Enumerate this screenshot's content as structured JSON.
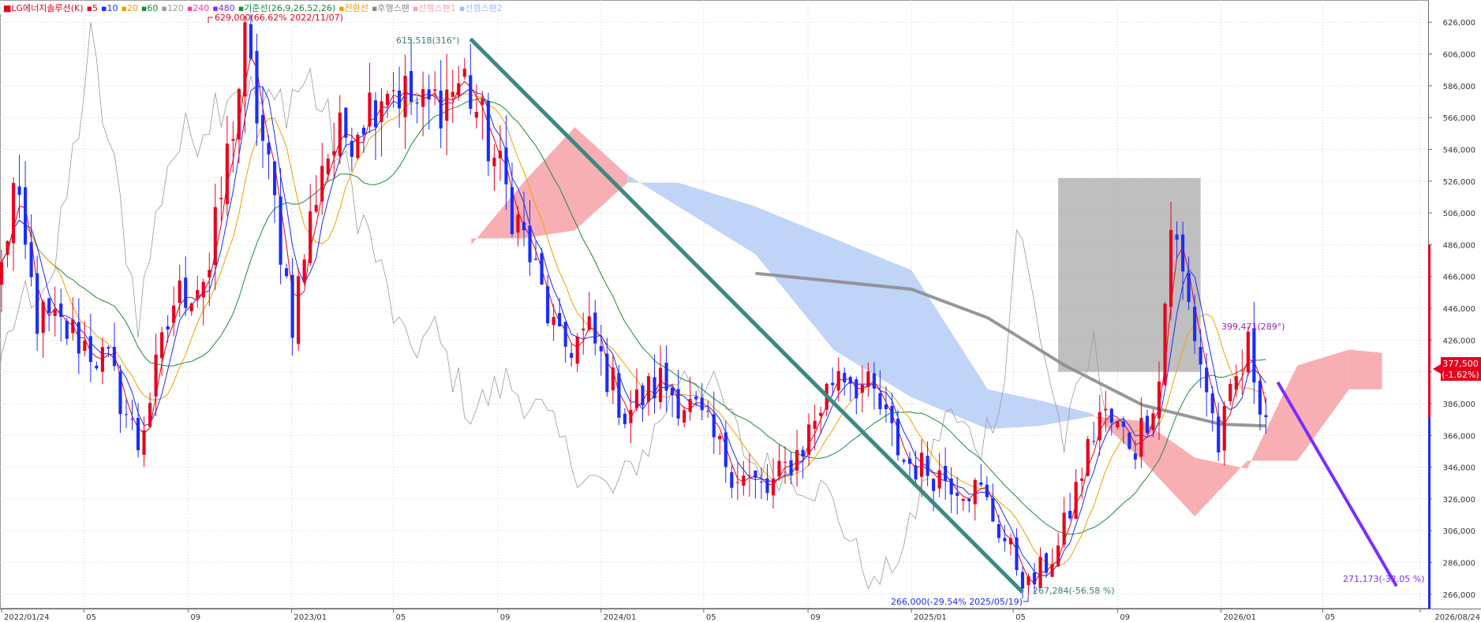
{
  "legend": [
    {
      "label": "LG에너지솔루션(K)",
      "color": "#e8001c"
    },
    {
      "label": "5",
      "color": "#e8001c"
    },
    {
      "label": "10",
      "color": "#1a2cff"
    },
    {
      "label": "20",
      "color": "#f0a000"
    },
    {
      "label": "60",
      "color": "#1a8a3a"
    },
    {
      "label": "120",
      "color": "#9a9a9a"
    },
    {
      "label": "240",
      "color": "#ff3aa0"
    },
    {
      "label": "480",
      "color": "#7a2cff"
    },
    {
      "label": "기준선(26,9,26,52,26)",
      "color": "#1a8a3a"
    },
    {
      "label": "전환선",
      "color": "#f0a000"
    },
    {
      "label": "후행스팬",
      "color": "#8a8a8a"
    },
    {
      "label": "선행스팬1",
      "color": "#ff9fb0"
    },
    {
      "label": "선행스팬2",
      "color": "#9fbcff"
    }
  ],
  "annotations": {
    "high": "629,000(66.62% 2022/11/07)",
    "trend_start": "615,518(316°)",
    "trend_end": "267,284(-56.58 %)",
    "low": "266,000(-29.54% 2025/05/19)",
    "proj_start": "399,471(289°)",
    "proj_end": "271,173(-32.05 %)"
  },
  "price_box": {
    "value": "377,500",
    "change": "(-1.62%)"
  },
  "chart_data": {
    "type": "candlestick",
    "ylim": [
      258000,
      638000
    ],
    "y_ticks": [
      626000,
      606000,
      586000,
      566000,
      546000,
      526000,
      506000,
      486000,
      466000,
      446000,
      426000,
      406000,
      386000,
      366000,
      346000,
      326000,
      306000,
      286000,
      266000
    ],
    "y_tick_labels": [
      "626,000",
      "606,000",
      "586,000",
      "566,000",
      "546,000",
      "526,000",
      "506,000",
      "486,000",
      "466,000",
      "446,000",
      "426,000",
      "406,000",
      "386,000",
      "366,000",
      "346,000",
      "326,000",
      "306,000",
      "286,000",
      "266,000"
    ],
    "x_range": [
      "2022-01-24",
      "2026-08-24"
    ],
    "x_ticks": [
      {
        "date": "2022-01-24",
        "label": "2022/01/24"
      },
      {
        "date": "2022-05-01",
        "label": "05"
      },
      {
        "date": "2022-09-01",
        "label": "09"
      },
      {
        "date": "2023-01-01",
        "label": "2023/01"
      },
      {
        "date": "2023-05-01",
        "label": "05"
      },
      {
        "date": "2023-09-01",
        "label": "09"
      },
      {
        "date": "2024-01-01",
        "label": "2024/01"
      },
      {
        "date": "2024-05-01",
        "label": "05"
      },
      {
        "date": "2024-09-01",
        "label": "09"
      },
      {
        "date": "2025-01-01",
        "label": "2025/01"
      },
      {
        "date": "2025-05-01",
        "label": "05"
      },
      {
        "date": "2025-09-01",
        "label": "09"
      },
      {
        "date": "2026-01-01",
        "label": "2026/01"
      },
      {
        "date": "2026-05-01",
        "label": "05"
      },
      {
        "date": "2026-08-24",
        "label": "2026/08/24"
      }
    ],
    "anchors": [
      {
        "date": "2022-01-24",
        "price": 470000
      },
      {
        "date": "2022-02-07",
        "price": 520000
      },
      {
        "date": "2022-03-07",
        "price": 440000
      },
      {
        "date": "2022-04-18",
        "price": 430000
      },
      {
        "date": "2022-05-30",
        "price": 410000
      },
      {
        "date": "2022-07-04",
        "price": 360000
      },
      {
        "date": "2022-08-15",
        "price": 450000
      },
      {
        "date": "2022-09-26",
        "price": 470000
      },
      {
        "date": "2022-11-07",
        "price": 610000
      },
      {
        "date": "2022-12-12",
        "price": 510000
      },
      {
        "date": "2023-01-02",
        "price": 440000
      },
      {
        "date": "2023-02-06",
        "price": 540000
      },
      {
        "date": "2023-03-13",
        "price": 560000
      },
      {
        "date": "2023-04-24",
        "price": 590000
      },
      {
        "date": "2023-06-05",
        "price": 570000
      },
      {
        "date": "2023-07-24",
        "price": 590000
      },
      {
        "date": "2023-08-28",
        "price": 540000
      },
      {
        "date": "2023-10-02",
        "price": 490000
      },
      {
        "date": "2023-11-13",
        "price": 420000
      },
      {
        "date": "2023-12-18",
        "price": 430000
      },
      {
        "date": "2024-01-29",
        "price": 380000
      },
      {
        "date": "2024-03-11",
        "price": 400000
      },
      {
        "date": "2024-04-22",
        "price": 380000
      },
      {
        "date": "2024-06-03",
        "price": 345000
      },
      {
        "date": "2024-07-15",
        "price": 330000
      },
      {
        "date": "2024-08-26",
        "price": 360000
      },
      {
        "date": "2024-10-07",
        "price": 410000
      },
      {
        "date": "2024-11-18",
        "price": 390000
      },
      {
        "date": "2024-12-23",
        "price": 350000
      },
      {
        "date": "2025-02-10",
        "price": 340000
      },
      {
        "date": "2025-03-24",
        "price": 330000
      },
      {
        "date": "2025-05-19",
        "price": 270000
      },
      {
        "date": "2025-06-23",
        "price": 295000
      },
      {
        "date": "2025-08-11",
        "price": 380000
      },
      {
        "date": "2025-09-22",
        "price": 360000
      },
      {
        "date": "2025-10-20",
        "price": 400000
      },
      {
        "date": "2025-11-03",
        "price": 500000
      },
      {
        "date": "2025-12-01",
        "price": 430000
      },
      {
        "date": "2025-12-29",
        "price": 360000
      },
      {
        "date": "2026-01-19",
        "price": 400000
      },
      {
        "date": "2026-02-02",
        "price": 420000
      },
      {
        "date": "2026-02-23",
        "price": 377500
      }
    ],
    "ichimoku_cloud": [
      {
        "date": "2023-08-01",
        "span1": 486000,
        "span2": 490000
      },
      {
        "date": "2023-10-01",
        "span1": 525000,
        "span2": 490000
      },
      {
        "date": "2023-12-01",
        "span1": 560000,
        "span2": 495000
      },
      {
        "date": "2024-02-01",
        "span1": 530000,
        "span2": 525000
      },
      {
        "date": "2024-04-01",
        "span1": 510000,
        "span2": 525000
      },
      {
        "date": "2024-07-01",
        "span1": 480000,
        "span2": 510000
      },
      {
        "date": "2024-10-01",
        "span1": 420000,
        "span2": 490000
      },
      {
        "date": "2025-01-01",
        "span1": 390000,
        "span2": 470000
      },
      {
        "date": "2025-04-01",
        "span1": 370000,
        "span2": 395000
      },
      {
        "date": "2025-06-01",
        "span1": 372000,
        "span2": 388000
      },
      {
        "date": "2025-08-01",
        "span1": 378000,
        "span2": 380000
      },
      {
        "date": "2025-10-01",
        "span1": 375000,
        "span2": 350000
      },
      {
        "date": "2025-12-01",
        "span1": 352000,
        "span2": 315000
      },
      {
        "date": "2026-02-01",
        "span1": 345000,
        "span2": 350000
      },
      {
        "date": "2026-04-01",
        "span1": 410000,
        "span2": 350000
      },
      {
        "date": "2026-06-01",
        "span1": 420000,
        "span2": 395000
      },
      {
        "date": "2026-07-10",
        "span1": 418000,
        "span2": 395000
      }
    ],
    "ma240": [
      {
        "date": "2024-07-01",
        "price": 468000
      },
      {
        "date": "2024-10-01",
        "price": 463000
      },
      {
        "date": "2025-01-01",
        "price": 458000
      },
      {
        "date": "2025-04-01",
        "price": 440000
      },
      {
        "date": "2025-07-01",
        "price": 410000
      },
      {
        "date": "2025-10-01",
        "price": 385000
      },
      {
        "date": "2026-01-01",
        "price": 373000
      },
      {
        "date": "2026-02-23",
        "price": 372000
      }
    ],
    "trend_line": [
      {
        "date": "2023-07-31",
        "price": 615518
      },
      {
        "date": "2025-05-12",
        "price": 267284
      }
    ],
    "projection_line": [
      {
        "date": "2026-03-09",
        "price": 399471
      },
      {
        "date": "2026-07-27",
        "price": 271173
      }
    ],
    "box_zone": {
      "from": "2025-06-23",
      "to": "2025-12-08",
      "low": 406000,
      "high": 528000
    },
    "last_price": 377500
  }
}
